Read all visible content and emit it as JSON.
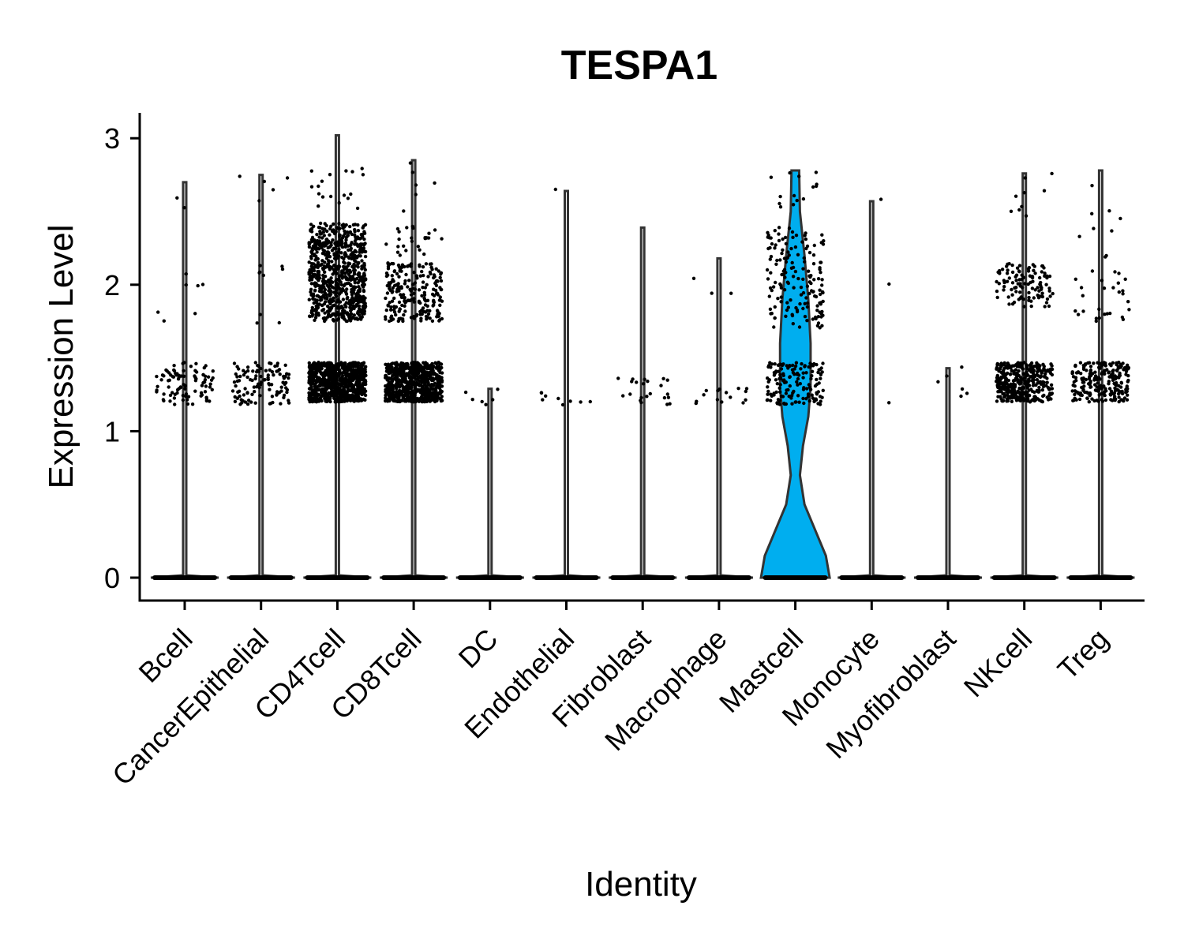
{
  "chart_data": {
    "type": "violin",
    "title": "TESPA1",
    "xlabel": "Identity",
    "ylabel": "Expression Level",
    "ylim": [
      -0.15,
      3.17
    ],
    "yticks": [
      0,
      1,
      2,
      3
    ],
    "grid": false,
    "legend": "none",
    "colors": {
      "line": "#333333",
      "fill_highlight": "#00AEEF",
      "points": "#000000"
    },
    "categories": [
      "Bcell",
      "CancerEpithelial",
      "CD4Tcell",
      "CD8Tcell",
      "DC",
      "Endothelial",
      "Fibroblast",
      "Macrophage",
      "Mastcell",
      "Monocyte",
      "Myofibroblast",
      "NKcell",
      "Treg"
    ],
    "violin_max": [
      2.7,
      2.75,
      3.02,
      2.85,
      1.29,
      2.64,
      2.39,
      2.18,
      2.78,
      2.57,
      1.43,
      2.76,
      2.78
    ],
    "violin_fill": [
      "none",
      "none",
      "none",
      "none",
      "none",
      "none",
      "none",
      "none",
      "#00AEEF",
      "none",
      "none",
      "none",
      "none"
    ],
    "mastcell_violin_halfwidth": [
      [
        0.0,
        0.45
      ],
      [
        0.15,
        0.4
      ],
      [
        0.3,
        0.28
      ],
      [
        0.5,
        0.12
      ],
      [
        0.7,
        0.06
      ],
      [
        0.9,
        0.1
      ],
      [
        1.1,
        0.17
      ],
      [
        1.3,
        0.2
      ],
      [
        1.6,
        0.2
      ],
      [
        1.9,
        0.17
      ],
      [
        2.2,
        0.12
      ],
      [
        2.5,
        0.06
      ],
      [
        2.78,
        0.05
      ]
    ],
    "points": [
      {
        "clusters": [
          {
            "y": [
              1.18,
              1.47
            ],
            "n": 90
          },
          {
            "y": [
              1.95,
              2.12
            ],
            "n": 4
          },
          {
            "y": [
              1.72,
              1.84
            ],
            "n": 3
          },
          {
            "y": [
              2.5,
              2.7
            ],
            "n": 2
          }
        ]
      },
      {
        "clusters": [
          {
            "y": [
              1.18,
              1.47
            ],
            "n": 110
          },
          {
            "y": [
              2.05,
              2.15
            ],
            "n": 6
          },
          {
            "y": [
              1.7,
              1.8
            ],
            "n": 3
          },
          {
            "y": [
              2.5,
              2.75
            ],
            "n": 5
          }
        ]
      },
      {
        "clusters": [
          {
            "y": [
              1.2,
              1.47
            ],
            "n": 900
          },
          {
            "y": [
              1.75,
              2.3
            ],
            "n": 650
          },
          {
            "y": [
              2.3,
              2.42
            ],
            "n": 90
          },
          {
            "y": [
              2.5,
              2.8
            ],
            "n": 18
          }
        ]
      },
      {
        "clusters": [
          {
            "y": [
              1.2,
              1.47
            ],
            "n": 700
          },
          {
            "y": [
              1.75,
              2.15
            ],
            "n": 220
          },
          {
            "y": [
              2.2,
              2.4
            ],
            "n": 25
          },
          {
            "y": [
              2.5,
              2.85
            ],
            "n": 6
          }
        ]
      },
      {
        "clusters": [
          {
            "y": [
              1.18,
              1.3
            ],
            "n": 6
          }
        ]
      },
      {
        "clusters": [
          {
            "y": [
              1.18,
              1.28
            ],
            "n": 9
          },
          {
            "y": [
              2.63,
              2.66
            ],
            "n": 1
          }
        ]
      },
      {
        "clusters": [
          {
            "y": [
              1.15,
              1.38
            ],
            "n": 22
          }
        ]
      },
      {
        "clusters": [
          {
            "y": [
              1.18,
              1.3
            ],
            "n": 15
          },
          {
            "y": [
              1.85,
              2.2
            ],
            "n": 3
          }
        ]
      },
      {
        "clusters": [
          {
            "y": [
              1.18,
              1.47
            ],
            "n": 150
          },
          {
            "y": [
              1.7,
              2.4
            ],
            "n": 160
          },
          {
            "y": [
              2.5,
              2.8
            ],
            "n": 14
          }
        ]
      },
      {
        "clusters": [
          {
            "y": [
              1.18,
              1.2
            ],
            "n": 1
          },
          {
            "y": [
              2.0,
              2.05
            ],
            "n": 1
          },
          {
            "y": [
              2.55,
              2.6
            ],
            "n": 1
          }
        ]
      },
      {
        "clusters": [
          {
            "y": [
              1.2,
              1.44
            ],
            "n": 6
          }
        ]
      },
      {
        "clusters": [
          {
            "y": [
              1.2,
              1.47
            ],
            "n": 380
          },
          {
            "y": [
              1.85,
              2.15
            ],
            "n": 110
          },
          {
            "y": [
              2.3,
              2.76
            ],
            "n": 9
          }
        ]
      },
      {
        "clusters": [
          {
            "y": [
              1.2,
              1.47
            ],
            "n": 230
          },
          {
            "y": [
              1.75,
              2.2
            ],
            "n": 30
          },
          {
            "y": [
              2.25,
              2.8
            ],
            "n": 7
          }
        ]
      }
    ]
  }
}
